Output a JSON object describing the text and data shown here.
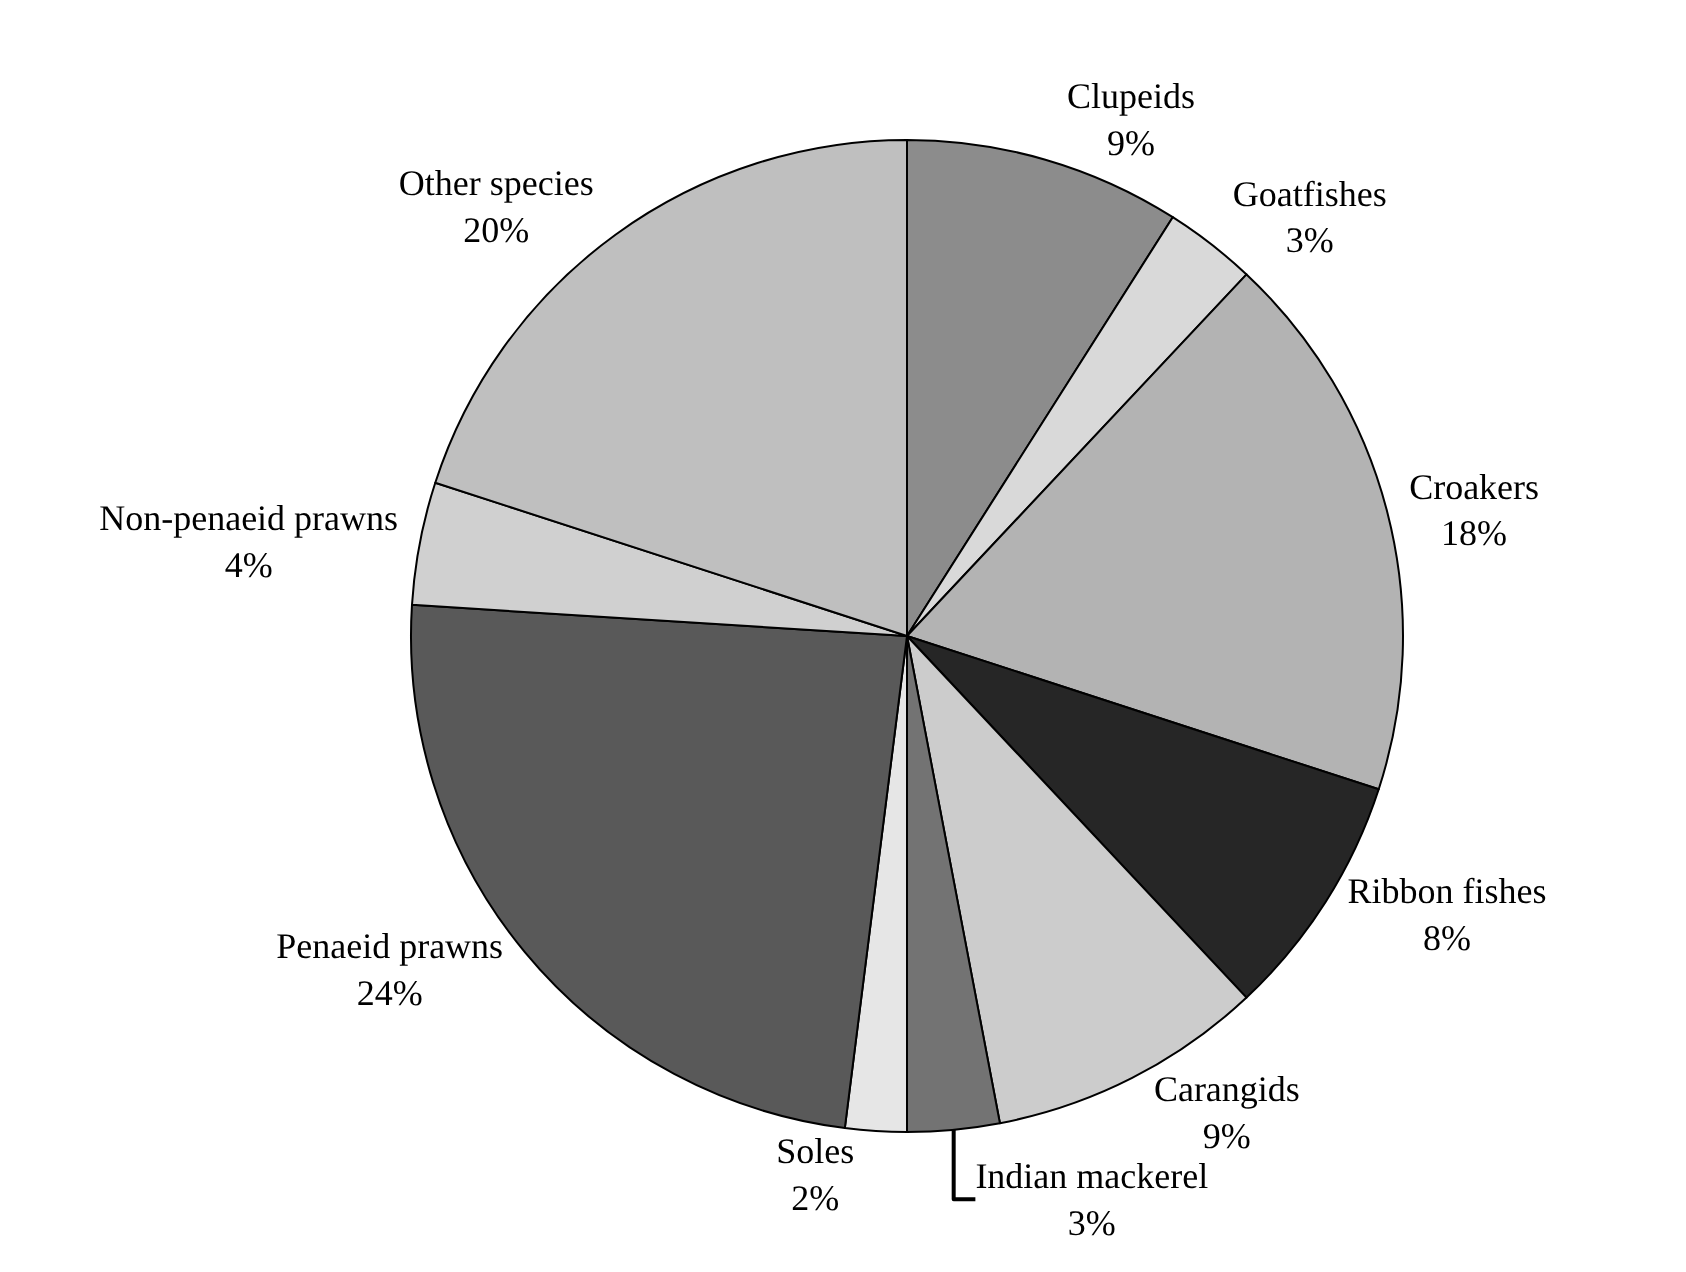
{
  "chart_data": {
    "type": "pie",
    "categories": [
      "Clupeids",
      "Goatfishes",
      "Croakers",
      "Ribbon fishes",
      "Carangids",
      "Indian mackerel",
      "Soles",
      "Penaeid prawns",
      "Non-penaeid prawns",
      "Other species"
    ],
    "values": [
      9,
      3,
      18,
      8,
      9,
      3,
      2,
      24,
      4,
      20
    ],
    "value_labels": [
      "9%",
      "3%",
      "18%",
      "8%",
      "9%",
      "3%",
      "2%",
      "24%",
      "4%",
      "20%"
    ],
    "colors": [
      "#8c8c8c",
      "#d9d9d9",
      "#b3b3b3",
      "#262626",
      "#cccccc",
      "#737373",
      "#e6e6e6",
      "#595959",
      "#d0d0d0",
      "#bfbfbf"
    ],
    "legend": false
  }
}
